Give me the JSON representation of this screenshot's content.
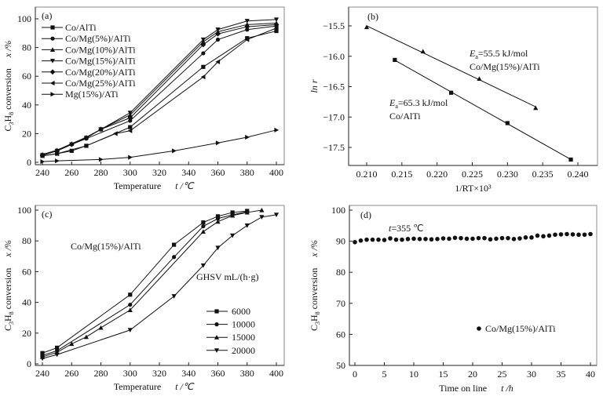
{
  "chart_data": [
    {
      "panel": "(a)",
      "type": "line",
      "title": "",
      "xlabel": "Temperature",
      "xlabel_symbol": "t /℃",
      "ylabel_parts": [
        "C",
        "3",
        "H",
        "8",
        " conversion"
      ],
      "ylabel_symbol": "x /%",
      "xlim": [
        240,
        400
      ],
      "ylim": [
        0,
        100
      ],
      "xticks": [
        240,
        260,
        280,
        300,
        320,
        340,
        360,
        380,
        400
      ],
      "yticks": [
        0,
        20,
        40,
        60,
        80,
        100
      ],
      "legend_position": "top-left",
      "series": [
        {
          "name": "Co/AlTi",
          "marker": "square",
          "x": [
            240,
            250,
            260,
            270,
            300,
            350,
            380,
            400
          ],
          "y": [
            4.5,
            6,
            8,
            11.5,
            24.5,
            66.5,
            86.5,
            91.5
          ]
        },
        {
          "name": "Co/Mg(5%)/AlTi",
          "marker": "circle",
          "x": [
            240,
            250,
            260,
            270,
            300,
            350,
            360,
            380,
            400
          ],
          "y": [
            5,
            8,
            12.5,
            16.5,
            29,
            76,
            85.5,
            92.5,
            95
          ]
        },
        {
          "name": "Co/Mg(10%)/AlTi",
          "marker": "triangle-up",
          "x": [
            240,
            250,
            260,
            270,
            280,
            300,
            350,
            360,
            380,
            400
          ],
          "y": [
            5.5,
            8.5,
            13,
            17.5,
            23,
            33,
            84,
            91,
            96,
            97
          ]
        },
        {
          "name": "Co/Mg(15%)/AlTi",
          "marker": "triangle-down",
          "x": [
            240,
            250,
            260,
            270,
            280,
            300,
            350,
            360,
            380,
            400
          ],
          "y": [
            5,
            8,
            12.5,
            17,
            23,
            34.5,
            85.5,
            92.5,
            98.5,
            99.5
          ]
        },
        {
          "name": "Co/Mg(20%)/AlTi",
          "marker": "diamond",
          "x": [
            240,
            250,
            260,
            270,
            280,
            300,
            350,
            360,
            380,
            400
          ],
          "y": [
            5,
            8,
            12.5,
            17,
            23,
            31,
            82,
            89.5,
            94.5,
            96
          ]
        },
        {
          "name": "Co/Mg(25%)/AlTi",
          "marker": "triangle-left",
          "x": [
            240,
            250,
            270,
            290,
            300,
            350,
            360,
            380,
            400
          ],
          "y": [
            4.5,
            6,
            11.5,
            20,
            22,
            59.5,
            70,
            85.5,
            93.5
          ]
        },
        {
          "name": "Mg(15%)/ATi",
          "marker": "triangle-right",
          "x": [
            240,
            250,
            280,
            300,
            330,
            360,
            380,
            400
          ],
          "y": [
            0.5,
            1,
            2,
            3.5,
            8,
            13.5,
            17.5,
            22.5
          ]
        }
      ]
    },
    {
      "panel": "(b)",
      "type": "scatter",
      "title": "",
      "xlabel": "1/RT×10³",
      "ylabel": "ln r",
      "xlim": [
        0.2075,
        0.2425
      ],
      "ylim": [
        -17.75,
        -15.25
      ],
      "xticks": [
        0.21,
        0.215,
        0.22,
        0.225,
        0.23,
        0.235,
        0.24
      ],
      "xtick_labels": [
        "0.210",
        "0.215",
        "0.220",
        "0.225",
        "0.230",
        "0.235",
        "0.240"
      ],
      "yticks": [
        -15.5,
        -16.0,
        -16.5,
        -17.0,
        -17.5
      ],
      "ytick_labels": [
        "−15.5",
        "−16.0",
        "−16.5",
        "−17.0",
        "−17.5"
      ],
      "series": [
        {
          "name": "Co/Mg(15%)/AlTi",
          "marker": "triangle-up",
          "fit_line": true,
          "x": [
            0.21,
            0.218,
            0.226,
            0.234
          ],
          "y": [
            -15.52,
            -15.92,
            -16.37,
            -16.85
          ],
          "annotation": {
            "ea_label": "E",
            "ea_sub": "a",
            "ea_value": "=55.5 kJ/mol",
            "catalyst": "Co/Mg(15%)/AlTi"
          }
        },
        {
          "name": "Co/AlTi",
          "marker": "square",
          "fit_line": true,
          "x": [
            0.214,
            0.222,
            0.23,
            0.239
          ],
          "y": [
            -16.06,
            -16.6,
            -17.1,
            -17.7
          ],
          "annotation": {
            "ea_label": "E",
            "ea_sub": "a",
            "ea_value": "=65.3 kJ/mol",
            "catalyst": "Co/AlTi"
          }
        }
      ]
    },
    {
      "panel": "(c)",
      "type": "line",
      "title": "",
      "xlabel": "Temperature",
      "xlabel_symbol": "t /℃",
      "ylabel_parts": [
        "C",
        "3",
        "H",
        "8",
        " conversion"
      ],
      "ylabel_symbol": "x /%",
      "xlim": [
        240,
        400
      ],
      "ylim": [
        0,
        100
      ],
      "xticks": [
        240,
        260,
        280,
        300,
        320,
        340,
        360,
        380,
        400
      ],
      "yticks": [
        0,
        20,
        40,
        60,
        80,
        100
      ],
      "annotation_catalyst": "Co/Mg(15%)/AlTi",
      "legend_title": "GHSV mL/(h·g)",
      "legend_position": "bottom-right",
      "series": [
        {
          "name": "6000",
          "marker": "square",
          "x": [
            240,
            250,
            300,
            330,
            350,
            360,
            370,
            380
          ],
          "y": [
            7,
            10.5,
            45,
            77.5,
            92,
            96,
            98.5,
            99.5
          ]
        },
        {
          "name": "10000",
          "marker": "circle",
          "x": [
            240,
            250,
            300,
            330,
            350,
            360,
            370,
            380
          ],
          "y": [
            5.5,
            8.5,
            38.5,
            69.5,
            89.5,
            94.5,
            97,
            99
          ]
        },
        {
          "name": "15000",
          "marker": "triangle-up",
          "x": [
            240,
            250,
            260,
            270,
            280,
            300,
            350,
            360,
            370,
            380,
            390
          ],
          "y": [
            4.5,
            7.5,
            13,
            17.5,
            23.5,
            35,
            86,
            92.5,
            96.5,
            98.5,
            100
          ]
        },
        {
          "name": "20000",
          "marker": "triangle-down",
          "x": [
            240,
            250,
            300,
            330,
            350,
            360,
            370,
            380,
            390,
            400
          ],
          "y": [
            3.5,
            6,
            22,
            44,
            64,
            75.5,
            83.5,
            90,
            95.5,
            97
          ]
        }
      ]
    },
    {
      "panel": "(d)",
      "type": "scatter",
      "title": "",
      "xlabel": "Time on line",
      "xlabel_symbol": "t /h",
      "ylabel_parts": [
        "C",
        "3",
        "H",
        "8",
        " conversion"
      ],
      "ylabel_symbol": "x /%",
      "xlim": [
        -1,
        41
      ],
      "ylim": [
        50,
        100
      ],
      "xticks": [
        0,
        5,
        10,
        15,
        20,
        25,
        30,
        35,
        40
      ],
      "yticks": [
        50,
        60,
        70,
        80,
        90,
        100
      ],
      "annotation_temp_symbol": "t",
      "annotation_temp_value": "=355 ℃",
      "legend_position": "bottom-right",
      "series": [
        {
          "name": "Co/Mg(15%)/AlTi",
          "marker": "circle",
          "x": [
            0,
            1,
            2,
            3,
            4,
            5,
            6,
            7,
            8,
            9,
            10,
            11,
            12,
            13,
            14,
            15,
            16,
            17,
            18,
            19,
            20,
            21,
            22,
            23,
            24,
            25,
            26,
            27,
            28,
            29,
            30,
            31,
            32,
            33,
            34,
            35,
            36,
            37,
            38,
            39,
            40
          ],
          "y": [
            89.7,
            90.2,
            90.5,
            90.5,
            90.5,
            90.4,
            90.9,
            90.5,
            90.5,
            90.7,
            90.8,
            90.7,
            90.7,
            90.6,
            90.7,
            90.9,
            90.8,
            91.1,
            91.0,
            90.8,
            90.8,
            91.0,
            91.0,
            90.6,
            90.8,
            91.0,
            91.0,
            90.7,
            90.9,
            91.2,
            91.2,
            91.8,
            91.6,
            91.8,
            92.1,
            92.2,
            92.3,
            92.2,
            92.1,
            92.1,
            92.3
          ]
        }
      ]
    }
  ]
}
